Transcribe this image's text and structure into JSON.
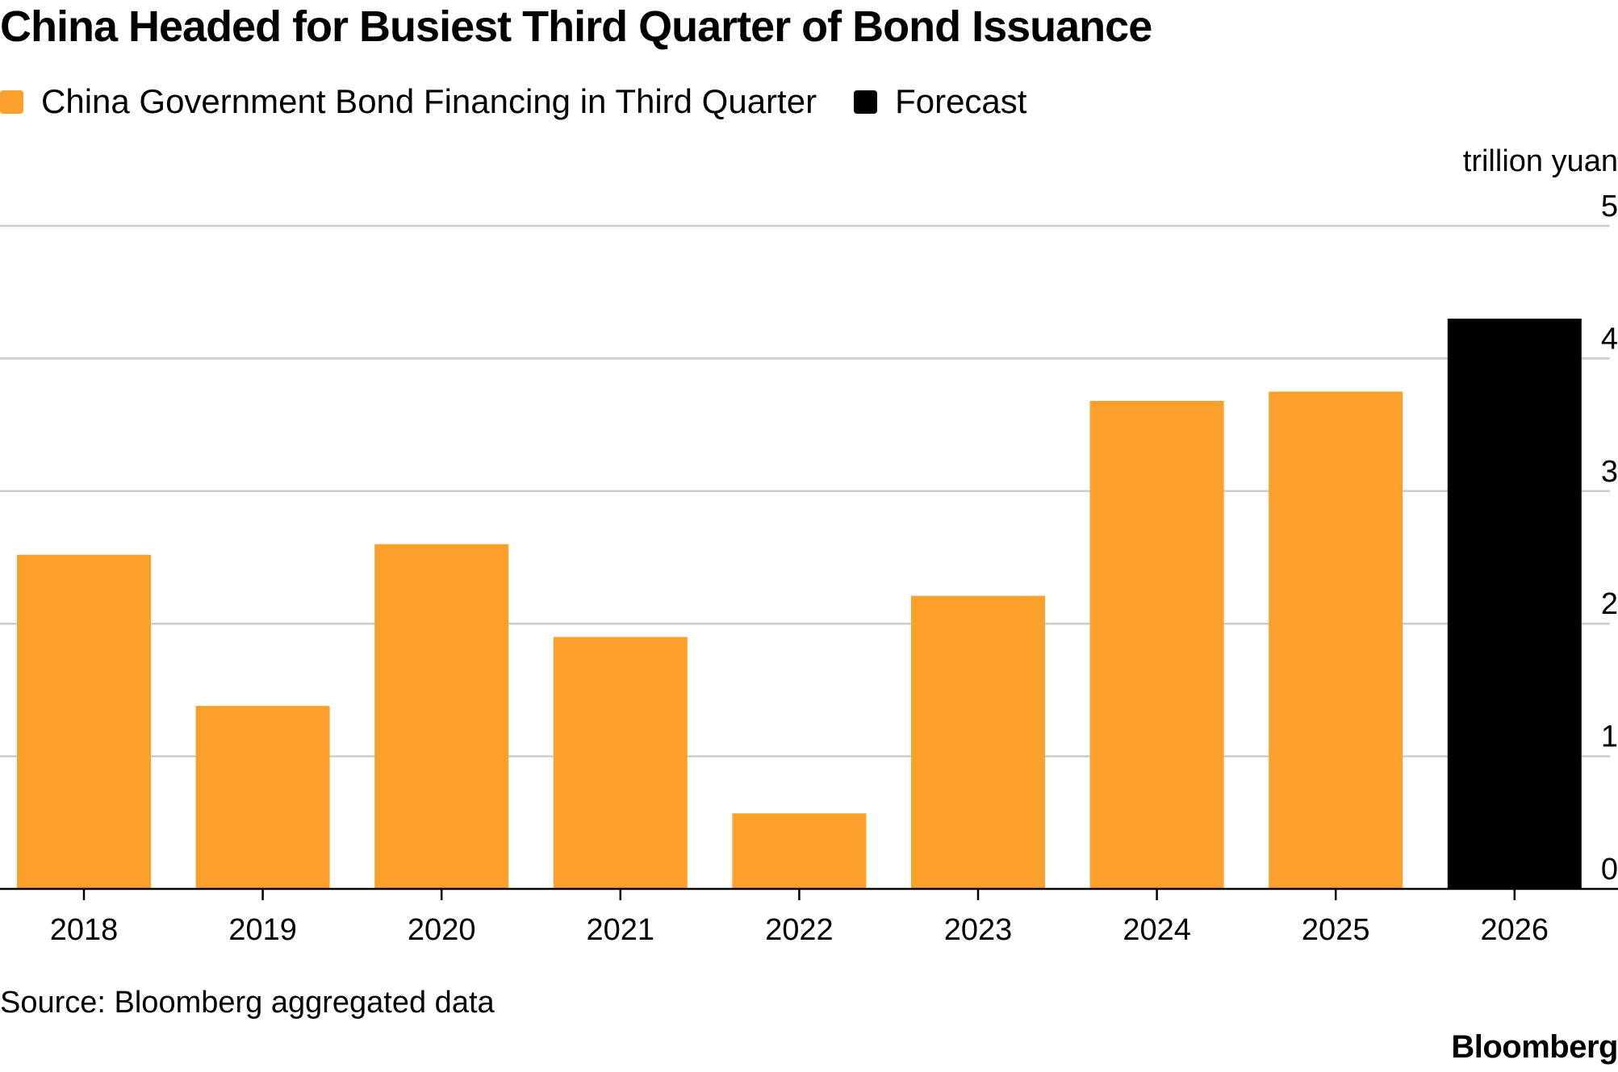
{
  "title": "China Headed for Busiest Third Quarter of Bond Issuance",
  "legend": [
    {
      "label": "China Government Bond Financing in Third Quarter",
      "color": "#FBA12B"
    },
    {
      "label": "Forecast",
      "color": "#000000"
    }
  ],
  "source": "Source: Bloomberg aggregated data",
  "brand": "Bloomberg",
  "chart_data": {
    "type": "bar",
    "categories": [
      "2018",
      "2019",
      "2020",
      "2021",
      "2022",
      "2023",
      "2024",
      "2025",
      "2026"
    ],
    "series": [
      {
        "name": "China Government Bond Financing in Third Quarter",
        "values": [
          2.52,
          1.38,
          2.6,
          1.9,
          0.57,
          2.21,
          3.68,
          3.75,
          null
        ],
        "color": "#FBA12B"
      },
      {
        "name": "Forecast",
        "values": [
          null,
          null,
          null,
          null,
          null,
          null,
          null,
          null,
          4.3
        ],
        "color": "#000000"
      }
    ],
    "ylabel": "trillion yuan",
    "y_ticks": [
      0,
      1,
      2,
      3,
      4,
      5
    ],
    "ylim": [
      0,
      5
    ],
    "y_axis_position": "right",
    "grid": true,
    "legend_position": "top-left"
  }
}
